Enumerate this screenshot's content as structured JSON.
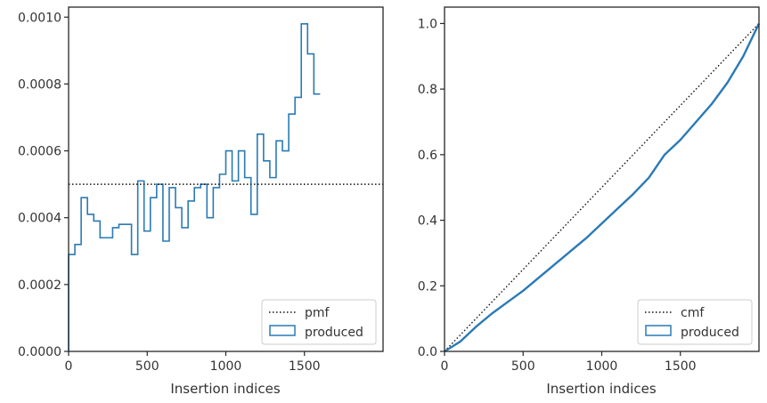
{
  "colors": {
    "produced": "#2a7ab5",
    "reference": "#111111",
    "frame": "#262626",
    "text": "#333333"
  },
  "chart_data": [
    {
      "type": "histogram-step",
      "xlabel": "Insertion indices",
      "ylabel": "",
      "xlim": [
        0,
        2000
      ],
      "ylim": [
        0,
        0.00103
      ],
      "xticks": [
        0,
        500,
        1000,
        1500
      ],
      "xtick_labels": [
        "0",
        "500",
        "1000",
        "1500"
      ],
      "yticks": [
        0,
        0.0002,
        0.0004,
        0.0006,
        0.0008,
        0.001
      ],
      "ytick_labels": [
        "0.0000",
        "0.0002",
        "0.0004",
        "0.0006",
        "0.0008",
        "0.0010"
      ],
      "legend_position": "lower-right",
      "reference": {
        "name": "pmf",
        "style": "dotted",
        "value": 0.0005
      },
      "series": [
        {
          "name": "produced",
          "bin_width": 40,
          "bin_start": 0,
          "values": [
            0.00029,
            0.00032,
            0.00046,
            0.00041,
            0.00039,
            0.00034,
            0.00034,
            0.00037,
            0.00038,
            0.00038,
            0.00029,
            0.00051,
            0.00036,
            0.00046,
            0.0005,
            0.00033,
            0.00049,
            0.00043,
            0.00037,
            0.00045,
            0.00049,
            0.0005,
            0.0004,
            0.00049,
            0.00053,
            0.0006,
            0.00051,
            0.0006,
            0.00052,
            0.00041,
            0.00065,
            0.00057,
            0.00052,
            0.00063,
            0.0006,
            0.00071,
            0.00076,
            0.00098,
            0.00089,
            0.00077
          ]
        }
      ]
    },
    {
      "type": "cumulative-step",
      "xlabel": "Insertion indices",
      "ylabel": "",
      "xlim": [
        0,
        2000
      ],
      "ylim": [
        0,
        1.05
      ],
      "xticks": [
        0,
        500,
        1000,
        1500
      ],
      "xtick_labels": [
        "0",
        "500",
        "1000",
        "1500"
      ],
      "yticks": [
        0,
        0.2,
        0.4,
        0.6,
        0.8,
        1.0
      ],
      "ytick_labels": [
        "0.0",
        "0.2",
        "0.4",
        "0.6",
        "0.8",
        "1.0"
      ],
      "legend_position": "lower-right",
      "reference": {
        "name": "cmf",
        "style": "dotted",
        "points": [
          [
            0,
            0
          ],
          [
            2000,
            1
          ]
        ]
      },
      "series": [
        {
          "name": "produced",
          "x": [
            0,
            100,
            200,
            300,
            400,
            500,
            600,
            700,
            800,
            900,
            1000,
            1100,
            1200,
            1300,
            1400,
            1500,
            1600,
            1700,
            1800,
            1900,
            2000
          ],
          "y": [
            0,
            0.03,
            0.075,
            0.115,
            0.15,
            0.185,
            0.225,
            0.265,
            0.305,
            0.345,
            0.39,
            0.435,
            0.48,
            0.53,
            0.6,
            0.645,
            0.7,
            0.755,
            0.82,
            0.9,
            1.0
          ]
        }
      ]
    }
  ]
}
